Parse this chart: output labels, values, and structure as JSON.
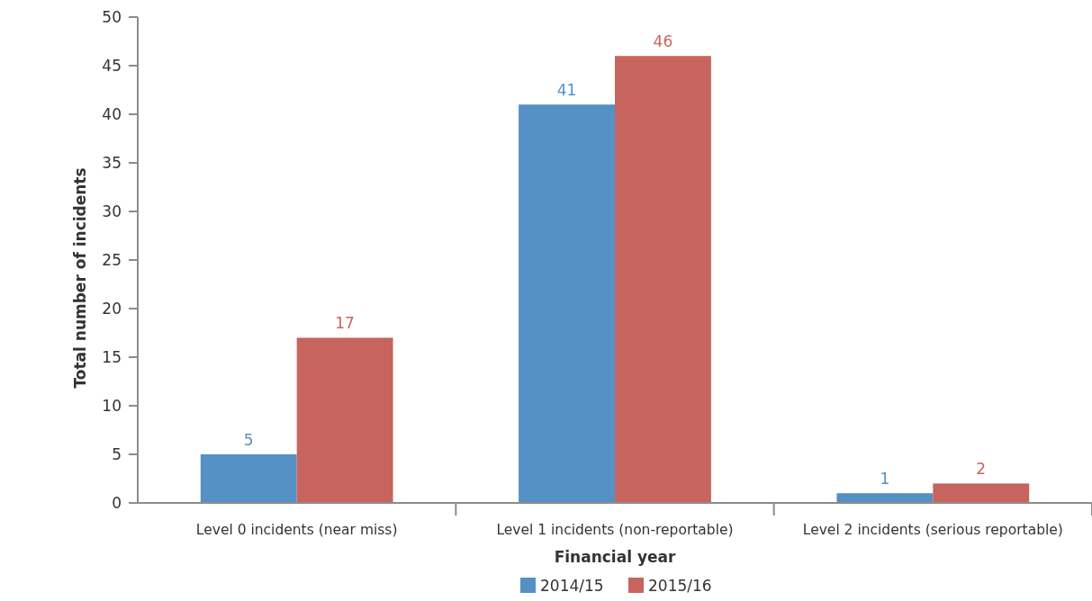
{
  "chart_data": {
    "type": "bar",
    "xlabel": "Financial year",
    "ylabel": "Total number of incidents",
    "categories": [
      "Level 0 incidents (near miss)",
      "Level 1 incidents (non-reportable)",
      "Level 2 incidents (serious reportable)"
    ],
    "series": [
      {
        "name": "2014/15",
        "color": "#5590c5",
        "values": [
          5,
          41,
          1
        ]
      },
      {
        "name": "2015/16",
        "color": "#c8645e",
        "values": [
          17,
          46,
          2
        ]
      }
    ],
    "ylim": [
      0,
      50
    ],
    "yticks": [
      0,
      5,
      10,
      15,
      20,
      25,
      30,
      35,
      40,
      45,
      50
    ],
    "data_labels": true,
    "legend": "bottom",
    "grid": false
  }
}
